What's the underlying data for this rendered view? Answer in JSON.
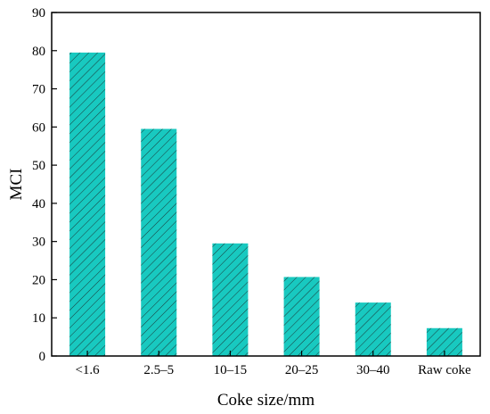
{
  "chart_data": {
    "type": "bar",
    "title": "",
    "xlabel": "Coke size/mm",
    "ylabel": "MCI",
    "categories": [
      "<1.6",
      "2.5–5",
      "10–15",
      "20–25",
      "30–40",
      "Raw coke"
    ],
    "values": [
      79.5,
      59.5,
      29.5,
      20.7,
      14.0,
      7.3
    ],
    "ylim": [
      0,
      90
    ],
    "yticks": [
      0,
      10,
      20,
      30,
      40,
      50,
      60,
      70,
      80,
      90
    ],
    "grid": false,
    "legend": "none",
    "bar_color": "#18c9c0",
    "hatch_color": "#1a3a3a",
    "hatch": "diagonal"
  }
}
